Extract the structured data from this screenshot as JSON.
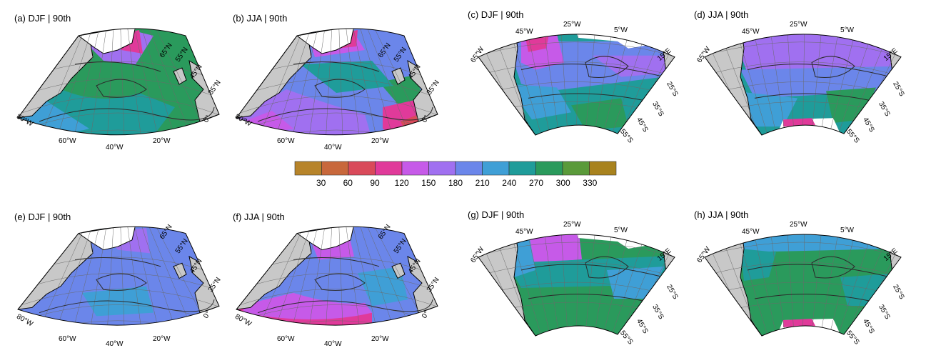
{
  "colorbar": {
    "colors": [
      "#b7842a",
      "#c8683c",
      "#d94a5a",
      "#e03a9a",
      "#c65ae8",
      "#a070f0",
      "#6b86ea",
      "#3f9fd6",
      "#1f9c9a",
      "#2a9a5c",
      "#5a9a3a",
      "#a8821e"
    ],
    "ticks": [
      "30",
      "60",
      "90",
      "120",
      "150",
      "180",
      "210",
      "240",
      "270",
      "300",
      "330"
    ]
  },
  "palette": {
    "land": "#c8c8c8",
    "coast": "#000000",
    "grid": "#6a6a6a",
    "contour": "#2a2a2a",
    "green": "#2a9a5c",
    "teal": "#1f9c9a",
    "blue": "#6b86ea",
    "lblue": "#3f9fd6",
    "violet": "#a070f0",
    "purple": "#c65ae8",
    "magenta": "#e03a9a",
    "red": "#d94a5a"
  },
  "panels": [
    {
      "id": "a",
      "title": "(a) DJF | 90th"
    },
    {
      "id": "b",
      "title": "(b) JJA | 90th"
    },
    {
      "id": "c",
      "title": "(c) DJF | 90th"
    },
    {
      "id": "d",
      "title": "(d) JJA | 90th"
    },
    {
      "id": "e",
      "title": "(e) DJF | 90th"
    },
    {
      "id": "f",
      "title": "(f) JJA | 90th"
    },
    {
      "id": "g",
      "title": "(g) DJF | 90th"
    },
    {
      "id": "h",
      "title": "(h) JJA | 90th"
    }
  ],
  "labels_na": {
    "lat": [
      "65°N",
      "55°N",
      "45°N",
      "35°N"
    ],
    "zero": "0°",
    "lon": [
      "80°W",
      "60°W",
      "40°W",
      "20°W"
    ]
  },
  "labels_sa": {
    "top": [
      "65°W",
      "45°W",
      "25°W",
      "5°W",
      "15°E"
    ],
    "lat": [
      "25°S",
      "35°S",
      "45°S",
      "55°S"
    ]
  }
}
